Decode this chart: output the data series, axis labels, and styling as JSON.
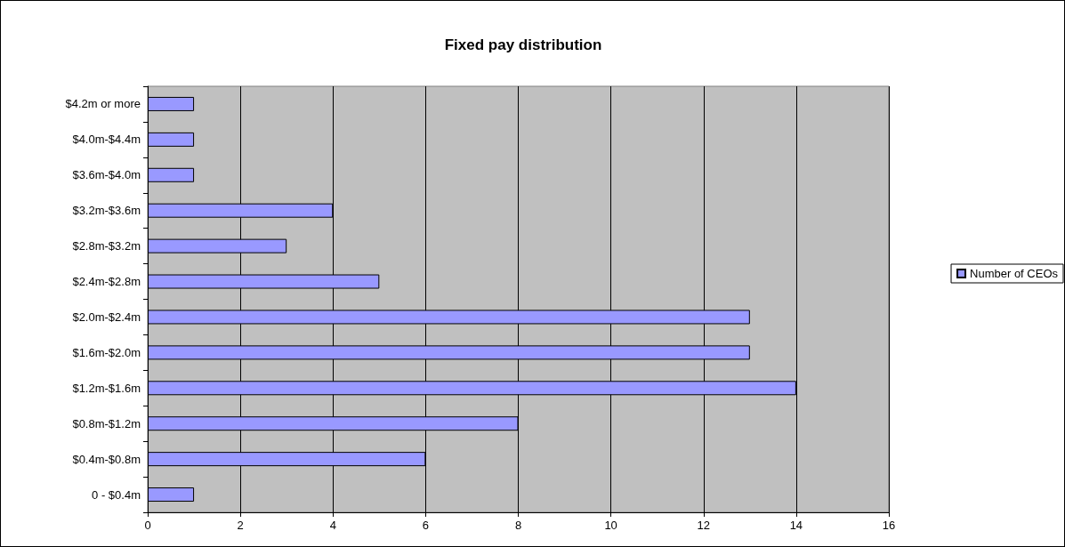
{
  "chart_data": {
    "type": "bar",
    "orientation": "horizontal",
    "title": "Fixed pay distribution",
    "categories": [
      "$4.2m or more",
      "$4.0m-$4.4m",
      "$3.6m-$4.0m",
      "$3.2m-$3.6m",
      "$2.8m-$3.2m",
      "$2.4m-$2.8m",
      "$2.0m-$2.4m",
      "$1.6m-$2.0m",
      "$1.2m-$1.6m",
      "$0.8m-$1.2m",
      "$0.4m-$0.8m",
      "0 - $0.4m"
    ],
    "series": [
      {
        "name": "Number of CEOs",
        "color": "#9999ff",
        "values": [
          1,
          1,
          1,
          4,
          3,
          5,
          13,
          13,
          14,
          8,
          6,
          1
        ]
      }
    ],
    "xlim": [
      0,
      16
    ],
    "xticks": [
      0,
      2,
      4,
      6,
      8,
      10,
      12,
      14,
      16
    ],
    "grid": "x",
    "legend": "right"
  }
}
